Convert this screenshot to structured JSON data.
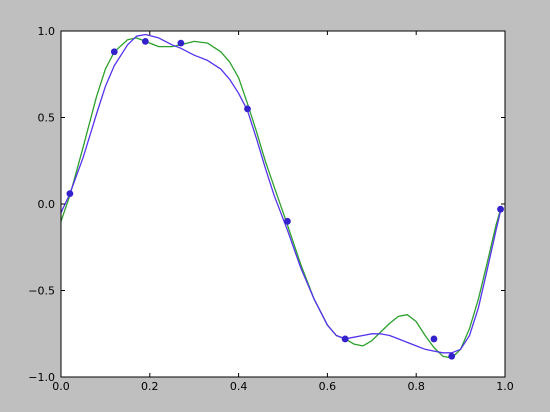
{
  "chart_data": {
    "type": "line",
    "xlim": [
      0.0,
      1.0
    ],
    "ylim": [
      -1.0,
      1.0
    ],
    "grid": false,
    "x_ticks": [
      0.0,
      0.2,
      0.4,
      0.6,
      0.8,
      1.0
    ],
    "x_tick_labels": [
      "0.0",
      "0.2",
      "0.4",
      "0.6",
      "0.8",
      "1.0"
    ],
    "y_ticks": [
      1.0,
      0.5,
      0.0,
      -0.5,
      -1.0
    ],
    "y_tick_labels": [
      "1.0",
      "0.5",
      "0.0",
      "−0.5",
      "−1.0"
    ],
    "series": [
      {
        "kind": "line",
        "color": "#2ca02c",
        "x": [
          0.0,
          0.02,
          0.05,
          0.08,
          0.1,
          0.12,
          0.15,
          0.17,
          0.19,
          0.22,
          0.25,
          0.27,
          0.3,
          0.33,
          0.36,
          0.38,
          0.4,
          0.42,
          0.44,
          0.46,
          0.48,
          0.51,
          0.54,
          0.57,
          0.6,
          0.62,
          0.64,
          0.66,
          0.68,
          0.7,
          0.72,
          0.74,
          0.76,
          0.78,
          0.8,
          0.82,
          0.84,
          0.86,
          0.88,
          0.9,
          0.92,
          0.94,
          0.96,
          0.98,
          0.99
        ],
        "y": [
          -0.1,
          0.05,
          0.33,
          0.62,
          0.78,
          0.88,
          0.95,
          0.96,
          0.94,
          0.91,
          0.91,
          0.92,
          0.94,
          0.93,
          0.88,
          0.82,
          0.73,
          0.58,
          0.42,
          0.25,
          0.1,
          -0.12,
          -0.35,
          -0.55,
          -0.7,
          -0.76,
          -0.78,
          -0.81,
          -0.82,
          -0.79,
          -0.74,
          -0.69,
          -0.65,
          -0.64,
          -0.68,
          -0.76,
          -0.83,
          -0.88,
          -0.89,
          -0.84,
          -0.72,
          -0.55,
          -0.34,
          -0.12,
          -0.03
        ]
      },
      {
        "kind": "line",
        "color": "#5533ee",
        "x": [
          0.0,
          0.02,
          0.05,
          0.08,
          0.1,
          0.12,
          0.15,
          0.17,
          0.19,
          0.22,
          0.25,
          0.27,
          0.3,
          0.33,
          0.36,
          0.38,
          0.4,
          0.42,
          0.44,
          0.46,
          0.48,
          0.51,
          0.54,
          0.57,
          0.6,
          0.62,
          0.64,
          0.66,
          0.68,
          0.7,
          0.72,
          0.74,
          0.76,
          0.78,
          0.8,
          0.82,
          0.84,
          0.86,
          0.88,
          0.9,
          0.92,
          0.94,
          0.96,
          0.98,
          0.99
        ],
        "y": [
          -0.05,
          0.06,
          0.27,
          0.52,
          0.68,
          0.8,
          0.92,
          0.97,
          0.98,
          0.96,
          0.92,
          0.9,
          0.86,
          0.83,
          0.78,
          0.72,
          0.64,
          0.54,
          0.38,
          0.21,
          0.05,
          -0.15,
          -0.37,
          -0.55,
          -0.7,
          -0.76,
          -0.78,
          -0.77,
          -0.76,
          -0.75,
          -0.75,
          -0.76,
          -0.78,
          -0.8,
          -0.82,
          -0.84,
          -0.85,
          -0.86,
          -0.86,
          -0.84,
          -0.76,
          -0.6,
          -0.38,
          -0.15,
          -0.04
        ]
      },
      {
        "kind": "scatter",
        "color": "#3322cc",
        "x": [
          0.02,
          0.12,
          0.19,
          0.27,
          0.42,
          0.51,
          0.64,
          0.84,
          0.88,
          0.99
        ],
        "y": [
          0.06,
          0.88,
          0.94,
          0.93,
          0.55,
          -0.1,
          -0.78,
          -0.78,
          -0.88,
          -0.03
        ]
      }
    ]
  }
}
